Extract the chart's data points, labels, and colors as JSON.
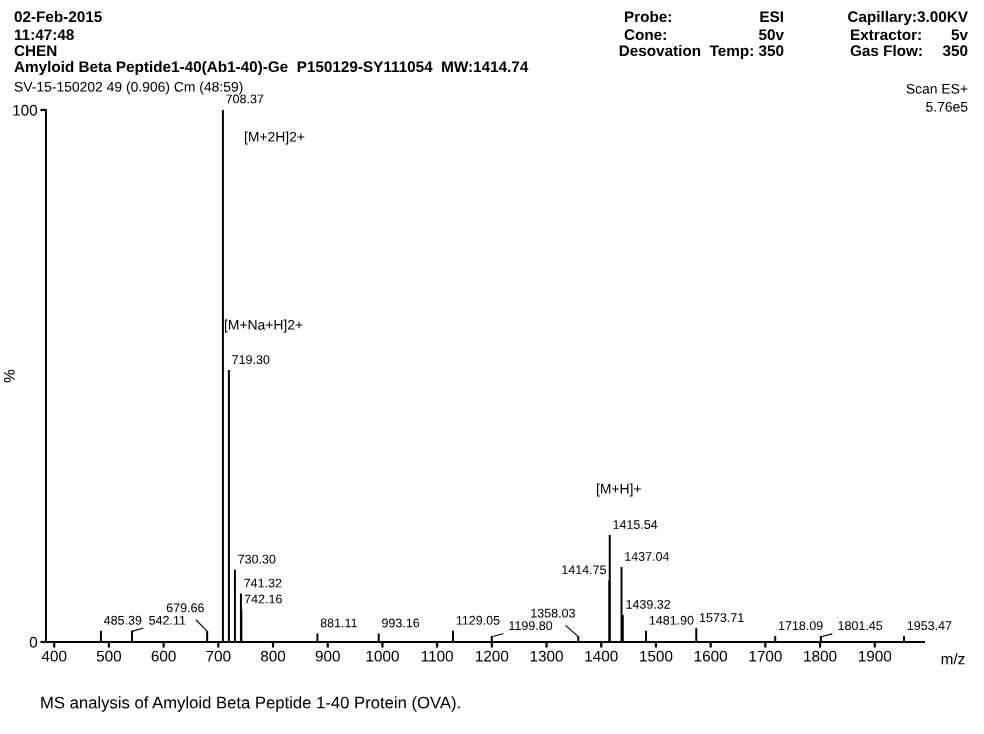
{
  "chart_data": {
    "type": "bar",
    "title": "Amyloid Beta Peptide1-40(Ab1-40)-Ge  P150129-SY111054  MW:1414.74",
    "subtitle": "SV-15-150202 49 (0.906) Cm (48:59)",
    "xlabel": "m/z",
    "ylabel": "%",
    "x": [
      485.39,
      542.11,
      679.66,
      708.37,
      719.3,
      730.3,
      741.32,
      742.16,
      881.11,
      993.16,
      1129.05,
      1199.8,
      1358.03,
      1414.75,
      1415.54,
      1437.04,
      1439.32,
      1481.9,
      1573.71,
      1718.09,
      1801.45,
      1953.47
    ],
    "values": [
      2,
      2,
      2,
      100,
      51,
      13.5,
      9,
      6,
      1.5,
      1.5,
      2,
      1,
      1,
      11.5,
      20,
      14,
      5,
      2,
      2.5,
      1,
      1,
      1
    ],
    "color": "#000000",
    "xlim": [
      385,
      1990
    ],
    "xticks": [
      400,
      500,
      600,
      700,
      800,
      900,
      1000,
      1100,
      1200,
      1300,
      1400,
      1500,
      1600,
      1700,
      1800,
      1900
    ],
    "ylim": [
      0,
      100
    ],
    "yticks": [
      0,
      100
    ],
    "grid": false,
    "annotations": [
      "[M+2H]2+",
      "[M+Na+H]2+",
      "[M+H]+",
      "02-Feb-2015",
      "11:47:48",
      "CHEN",
      "Probe:",
      "ESI",
      "Cone:",
      "50v",
      "Desovation  Temp: 350",
      "Capillary:3.00KV",
      "Extractor:",
      "5v",
      "Gas Flow:",
      "350",
      "Scan ES+",
      "5.76e5",
      "MS analysis of Amyloid Beta Peptide 1-40 Protein (OVA).",
      {
        "text": "485.39",
        "x": 485.39,
        "y": 2
      },
      {
        "text": "542.11",
        "x": 542.11,
        "y": 2
      },
      {
        "text": "679.66",
        "x": 679.66,
        "y": 2
      },
      {
        "text": "708.37",
        "x": 708.37,
        "y": 100
      },
      {
        "text": "719.30",
        "x": 719.3,
        "y": 51
      },
      {
        "text": "730.30",
        "x": 730.3,
        "y": 13.5
      },
      {
        "text": "741.32",
        "x": 741.32,
        "y": 9
      },
      {
        "text": "742.16",
        "x": 742.16,
        "y": 6
      },
      {
        "text": "881.11",
        "x": 881.11,
        "y": 1.5
      },
      {
        "text": "993.16",
        "x": 993.16,
        "y": 1.5
      },
      {
        "text": "1129.05",
        "x": 1129.05,
        "y": 2
      },
      {
        "text": "1199.80",
        "x": 1199.8,
        "y": 1
      },
      {
        "text": "1358.03",
        "x": 1358.03,
        "y": 1
      },
      {
        "text": "1414.75",
        "x": 1414.75,
        "y": 11.5
      },
      {
        "text": "1415.54",
        "x": 1415.54,
        "y": 20
      },
      {
        "text": "1437.04",
        "x": 1437.04,
        "y": 14
      },
      {
        "text": "1439.32",
        "x": 1439.32,
        "y": 5
      },
      {
        "text": "1481.90",
        "x": 1481.9,
        "y": 2
      },
      {
        "text": "1573.71",
        "x": 1573.71,
        "y": 2.5
      },
      {
        "text": "1718.09",
        "x": 1718.09,
        "y": 1
      },
      {
        "text": "1801.45",
        "x": 1801.45,
        "y": 1
      },
      {
        "text": "1953.47",
        "x": 1953.47,
        "y": 1
      }
    ]
  }
}
